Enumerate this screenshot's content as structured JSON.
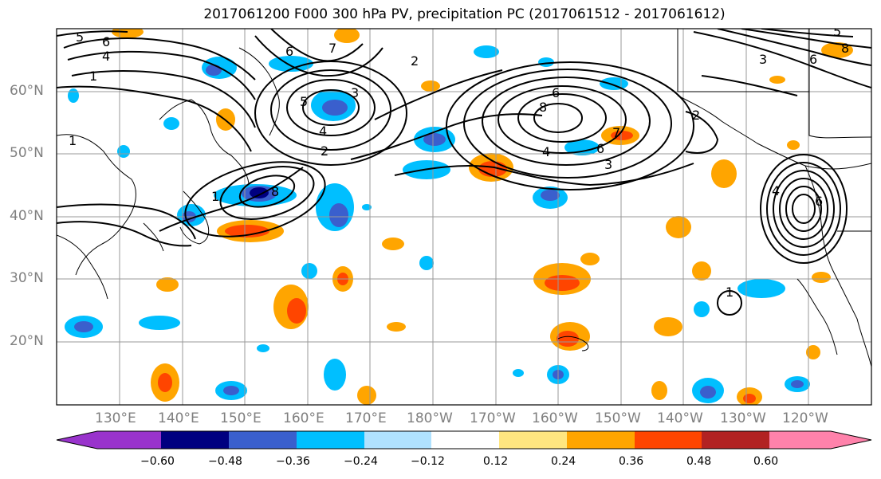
{
  "title": "2017061200 F000 300 hPa PV, precipitation PC (2017061512 - 2017061612)",
  "map": {
    "lat_labels": [
      "60°N",
      "50°N",
      "40°N",
      "30°N",
      "20°N"
    ],
    "lon_labels": [
      "130°E",
      "140°E",
      "150°E",
      "160°E",
      "170°E",
      "180°W",
      "170°W",
      "160°W",
      "150°W",
      "140°W",
      "130°W",
      "120°W"
    ],
    "contour_labels": [
      "5",
      "6",
      "4",
      "1",
      "6",
      "7",
      "3",
      "5",
      "2",
      "1",
      "4",
      "8",
      "7",
      "6",
      "3",
      "2",
      "6",
      "8",
      "4",
      "2",
      "6",
      "5",
      "8",
      "6",
      "4",
      "1",
      "1",
      "3"
    ]
  },
  "colorbar": {
    "tick_labels": [
      "−0.60",
      "−0.48",
      "−0.36",
      "−0.24",
      "−0.12",
      "0.12",
      "0.24",
      "0.36",
      "0.48",
      "0.60"
    ],
    "colors": [
      "#9933cc",
      "#000080",
      "#3a5fcd",
      "#00bfff",
      "#b0e2ff",
      "#ffffff",
      "#ffe680",
      "#ffa500",
      "#ff4500",
      "#b22222",
      "#ff82ab"
    ]
  }
}
